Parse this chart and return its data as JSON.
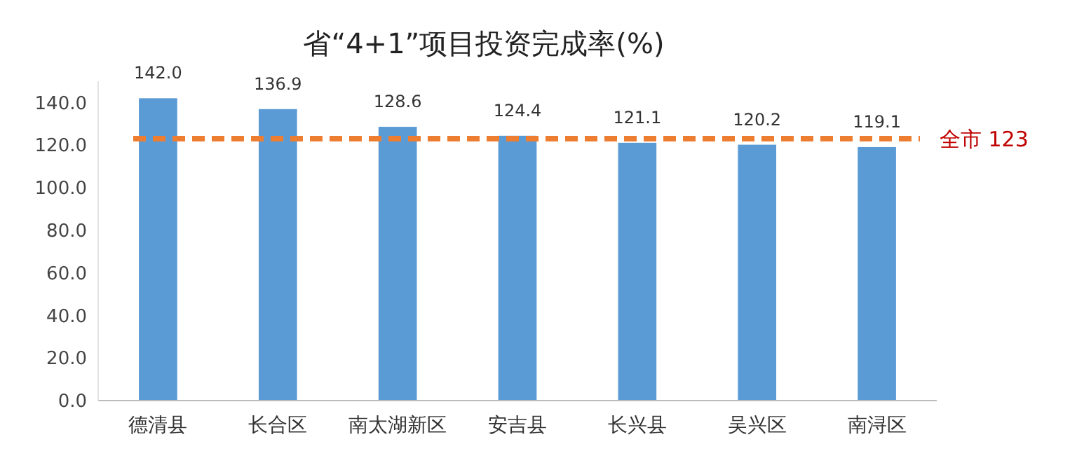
{
  "chart_data": {
    "type": "bar",
    "title": "省“4+1”项目投资完成率(%)",
    "categories": [
      "德清县",
      "长合区",
      "南太湖新区",
      "安吉县",
      "长兴县",
      "吴兴区",
      "南浔区"
    ],
    "values": [
      142.0,
      136.9,
      128.6,
      124.4,
      121.1,
      120.2,
      119.1
    ],
    "value_labels": [
      "142.0",
      "136.9",
      "128.6",
      "124.4",
      "121.1",
      "120.2",
      "119.1"
    ],
    "color": "#5b9bd5",
    "grid": false,
    "ylim": [
      0,
      150
    ],
    "yticks": [
      {
        "value": 0,
        "label": "0.0"
      },
      {
        "value": 20,
        "label": "20.0"
      },
      {
        "value": 40,
        "label": "40.0"
      },
      {
        "value": 60,
        "label": "60.0"
      },
      {
        "value": 80,
        "label": "80.0"
      },
      {
        "value": 100,
        "label": "100.0"
      },
      {
        "value": 120,
        "label": "120.0"
      },
      {
        "value": 140,
        "label": "140.0"
      }
    ],
    "ref_lines": [
      {
        "axis": "y",
        "value": 123,
        "label": "全市 123",
        "color": "#ed7d31",
        "line_style": "dashed"
      }
    ]
  }
}
